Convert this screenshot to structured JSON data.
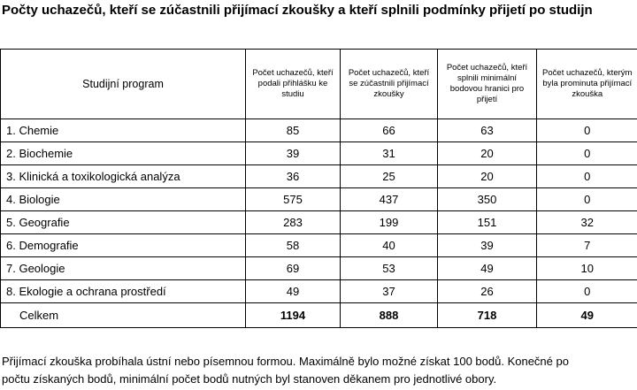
{
  "title": "Počty uchazečů, kteří se zúčastnili přijímací zkoušky a kteří splnili podmínky přijetí po studijn",
  "table": {
    "headers": [
      "Studijní program",
      "Počet uchazečů, kteří podali přihlášku ke studiu",
      "Počet uchazečů, kteří se zúčastnili přijímací zkoušky",
      "Počet uchazečů, kteří splnili minimální bodovou hranici pro přijetí",
      "Počet uchazečů, kterým byla prominuta přijímací zkouška"
    ],
    "rows": [
      [
        "1. Chemie",
        "85",
        "66",
        "63",
        "0"
      ],
      [
        "2. Biochemie",
        "39",
        "31",
        "20",
        "0"
      ],
      [
        "3. Klinická a toxikologická analýza",
        "36",
        "25",
        "20",
        "0"
      ],
      [
        "4. Biologie",
        "575",
        "437",
        "350",
        "0"
      ],
      [
        "5. Geografie",
        "283",
        "199",
        "151",
        "32"
      ],
      [
        "6. Demografie",
        "58",
        "40",
        "39",
        "7"
      ],
      [
        "7. Geologie",
        "69",
        "53",
        "49",
        "10"
      ],
      [
        "8. Ekologie a ochrana prostředí",
        "49",
        "37",
        "26",
        "0"
      ]
    ],
    "total": [
      "Celkem",
      "1194",
      "888",
      "718",
      "49"
    ]
  },
  "note": {
    "line1": "Přijímací zkouška probíhala ústní nebo písemnou formou. Maximálně bylo možné získat 100 bodů. Konečné po",
    "line2": "počtu získaných bodů, minimální počet bodů nutných byl stanoven děkanem pro jednotlivé obory."
  }
}
